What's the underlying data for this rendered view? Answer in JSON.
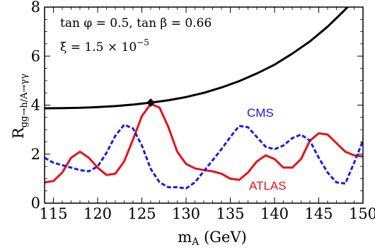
{
  "chart_data": {
    "type": "line",
    "xlabel": "m_A (GeV)",
    "ylabel": "R_{gg→h/A→γγ}",
    "xlim": [
      114,
      150
    ],
    "ylim": [
      0,
      8
    ],
    "xticks": [
      115,
      120,
      125,
      130,
      135,
      140,
      145,
      150
    ],
    "yticks": [
      0,
      2,
      4,
      6,
      8
    ],
    "grid": false,
    "annotations": {
      "line1": "tan φ = 0.5, tan β = 0.66",
      "line2": "ξ = 1.5 × 10",
      "line2_exponent": "−5"
    },
    "marker": {
      "x": 126,
      "y": 4.1,
      "shape": "diamond"
    },
    "series": [
      {
        "name": "",
        "color": "#000000",
        "style": "solid",
        "x": [
          114,
          116,
          118,
          120,
          122,
          124,
          126,
          128,
          130,
          132,
          134,
          136,
          138,
          140,
          142,
          144,
          146,
          148,
          149.5
        ],
        "y": [
          3.87,
          3.88,
          3.89,
          3.92,
          3.96,
          4.02,
          4.1,
          4.2,
          4.33,
          4.5,
          4.72,
          4.98,
          5.29,
          5.65,
          6.1,
          6.6,
          7.2,
          7.9,
          8.5
        ]
      },
      {
        "name": "ATLAS",
        "color": "#e8101a",
        "style": "solid",
        "x": [
          114,
          115,
          116,
          117,
          118,
          119,
          120,
          121,
          122,
          123,
          124,
          125,
          126,
          127,
          128,
          129,
          130,
          131,
          132,
          133,
          134,
          135,
          136,
          137,
          138,
          139,
          140,
          141,
          142,
          143,
          144,
          145,
          146,
          147,
          148,
          149,
          150
        ],
        "y": [
          0.85,
          0.9,
          1.25,
          1.85,
          2.1,
          1.85,
          1.45,
          1.15,
          1.2,
          1.7,
          2.6,
          3.55,
          4.05,
          3.9,
          3.1,
          2.1,
          1.6,
          1.42,
          1.35,
          1.3,
          1.2,
          1.0,
          0.95,
          1.25,
          1.7,
          1.95,
          1.8,
          1.45,
          1.45,
          1.8,
          2.55,
          2.85,
          2.8,
          2.45,
          2.1,
          1.95,
          1.9
        ]
      },
      {
        "name": "CMS",
        "color": "#1c1ce0",
        "style": "dashed",
        "x": [
          114,
          115,
          116,
          117,
          118,
          119,
          120,
          121,
          122,
          123,
          124,
          125,
          126,
          127,
          128,
          129,
          130,
          131,
          132,
          133,
          134,
          135,
          136,
          137,
          138,
          139,
          140,
          141,
          142,
          143,
          144,
          145,
          146,
          147,
          148,
          149,
          150
        ],
        "y": [
          1.85,
          1.65,
          1.55,
          1.45,
          1.35,
          1.3,
          1.5,
          2.05,
          2.75,
          3.2,
          3.05,
          2.35,
          1.4,
          0.85,
          0.65,
          0.65,
          0.6,
          0.85,
          1.3,
          1.75,
          2.2,
          2.7,
          3.15,
          3.1,
          2.7,
          2.3,
          2.2,
          2.35,
          2.65,
          2.8,
          2.55,
          1.85,
          1.25,
          0.85,
          0.8,
          1.65,
          2.55
        ]
      }
    ]
  }
}
